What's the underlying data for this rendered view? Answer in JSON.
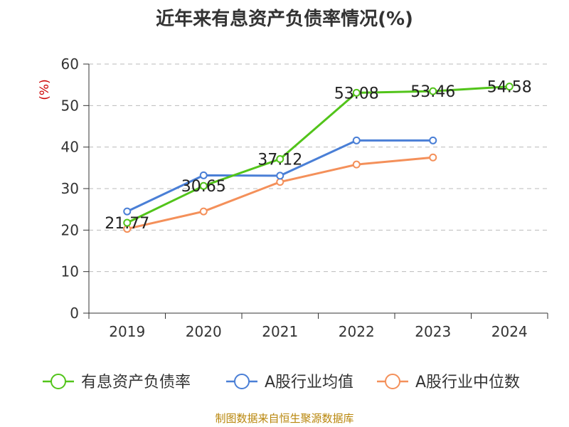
{
  "title": "近年来有息资产负债率情况(%)",
  "footer": "制图数据来自恒生聚源数据库",
  "chart_data": {
    "type": "line",
    "title": "近年来有息资产负债率情况(%)",
    "ylabel": "(%)",
    "xlabel": "",
    "categories": [
      "2019",
      "2020",
      "2021",
      "2022",
      "2023",
      "2024"
    ],
    "ylim": [
      0,
      60
    ],
    "yticks": [
      0,
      10,
      20,
      30,
      40,
      50,
      60
    ],
    "grid": true,
    "legend": "bottom",
    "series": [
      {
        "name": "有息资产负债率",
        "color": "#52c41a",
        "values": [
          21.77,
          30.65,
          37.12,
          53.08,
          53.46,
          54.58
        ],
        "labels": [
          "21.77",
          "30.65",
          "37.12",
          "53.08",
          "53.46",
          "54.58"
        ]
      },
      {
        "name": "A股行业均值",
        "color": "#4a7fd6",
        "values": [
          24.5,
          33.2,
          33.1,
          41.6,
          41.6,
          null
        ]
      },
      {
        "name": "A股行业中位数",
        "color": "#f4905a",
        "values": [
          20.3,
          24.5,
          31.6,
          35.8,
          37.5,
          null
        ]
      }
    ]
  }
}
